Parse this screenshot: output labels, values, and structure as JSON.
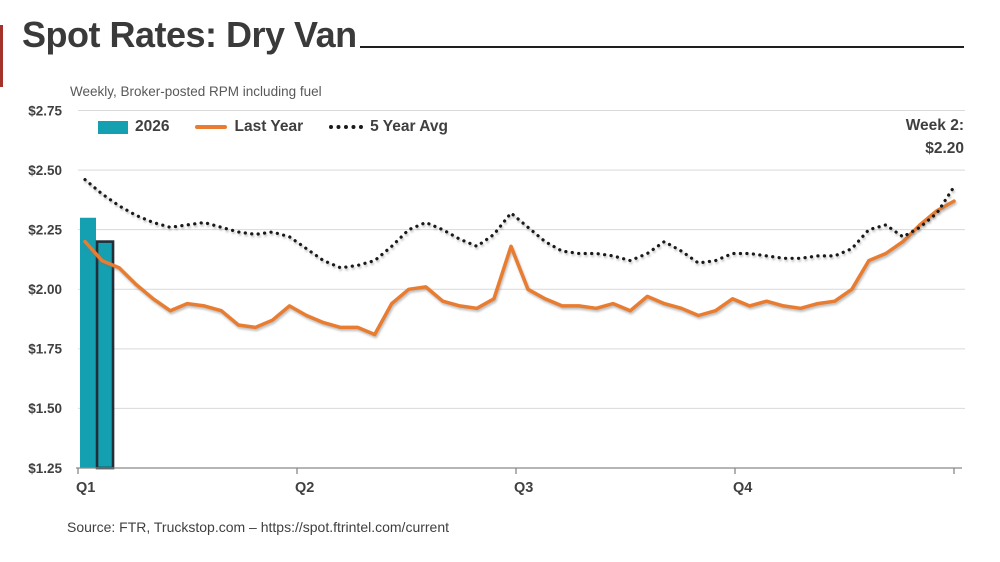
{
  "header": {
    "title": "Spot Rates: Dry Van",
    "subtitle": "Weekly, Broker-posted RPM including fuel"
  },
  "annotation": {
    "line1": "Week 2:",
    "line2": "$2.20"
  },
  "source": "Source: FTR, Truckstop.com – https://spot.ftrintel.com/current",
  "colors": {
    "accent_red": "#A3322B",
    "teal_2026": "#14A0B0",
    "orange_last_year": "#E87D31",
    "dotted_black": "#1A1A1A",
    "current_bar_outline": "#232E38"
  },
  "legend": [
    {
      "label": "2026",
      "type": "bar",
      "color": "#14A0B0"
    },
    {
      "label": "Last Year",
      "type": "line",
      "color": "#E87D31"
    },
    {
      "label": "5 Year Avg",
      "type": "dotted",
      "color": "#1A1A1A"
    }
  ],
  "chart_data": {
    "type": "bar",
    "subtype": "mixed bar + line, weekly spot rates",
    "title": "Spot Rates: Dry Van",
    "subtitle": "Weekly, Broker-posted RPM including fuel",
    "annotation": "Week 2: $2.20",
    "x_axis": {
      "unit": "week",
      "weeks": 52,
      "quarter_labels": [
        "Q1",
        "Q2",
        "Q3",
        "Q4"
      ]
    },
    "y_axis": {
      "min": 1.25,
      "max": 2.75,
      "tick_step": 0.25,
      "tick_labels": [
        "$2.75",
        "$2.50",
        "$2.25",
        "$2.00",
        "$1.75",
        "$1.50",
        "$1.25"
      ],
      "format": "USD per mile (RPM)"
    },
    "grid": "horizontal only",
    "legend_position": "top-left inside plot",
    "series": [
      {
        "name": "2026",
        "type": "bar",
        "color": "#14A0B0",
        "current_week_highlighted": true,
        "values": [
          2.3,
          2.2
        ]
      },
      {
        "name": "Last Year",
        "type": "line",
        "color": "#E87D31",
        "values": [
          2.2,
          2.12,
          2.09,
          2.02,
          1.96,
          1.91,
          1.94,
          1.93,
          1.91,
          1.85,
          1.84,
          1.87,
          1.93,
          1.89,
          1.86,
          1.84,
          1.84,
          1.81,
          1.94,
          2.0,
          2.01,
          1.95,
          1.93,
          1.92,
          1.96,
          2.18,
          2.0,
          1.96,
          1.93,
          1.93,
          1.92,
          1.94,
          1.91,
          1.97,
          1.94,
          1.92,
          1.89,
          1.91,
          1.96,
          1.93,
          1.95,
          1.93,
          1.92,
          1.94,
          1.95,
          2.0,
          2.12,
          2.15,
          2.2,
          2.27,
          2.33,
          2.37
        ]
      },
      {
        "name": "5 Year Avg",
        "type": "dotted-line",
        "color": "#1A1A1A",
        "values": [
          2.46,
          2.4,
          2.35,
          2.31,
          2.28,
          2.26,
          2.27,
          2.28,
          2.26,
          2.24,
          2.23,
          2.24,
          2.22,
          2.17,
          2.12,
          2.09,
          2.1,
          2.12,
          2.18,
          2.25,
          2.28,
          2.25,
          2.21,
          2.18,
          2.23,
          2.32,
          2.26,
          2.2,
          2.16,
          2.15,
          2.15,
          2.14,
          2.12,
          2.15,
          2.2,
          2.16,
          2.11,
          2.12,
          2.15,
          2.15,
          2.14,
          2.13,
          2.13,
          2.14,
          2.14,
          2.17,
          2.25,
          2.27,
          2.22,
          2.26,
          2.32,
          2.43
        ]
      }
    ]
  }
}
